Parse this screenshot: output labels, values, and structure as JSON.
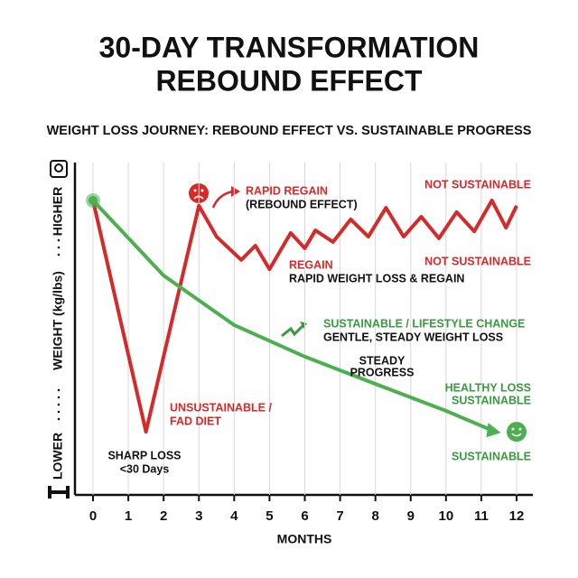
{
  "chart_data": {
    "type": "line",
    "title": [
      "30-DAY TRANSFORMATION",
      "REBOUND EFFECT"
    ],
    "subtitle": "WEIGHT LOSS JOURNEY: REBOUND EFFECT VS. SUSTAINABLE PROGRESS",
    "x_label": "MONTHS",
    "y_label": [
      "LOWER",
      "WEIGHT (kg/lbs)",
      "HIGHER"
    ],
    "xlim": [
      0,
      12
    ],
    "xticks": [
      0,
      1,
      2,
      3,
      4,
      5,
      6,
      7,
      8,
      9,
      10,
      11,
      12
    ],
    "ylim": [
      0,
      100
    ],
    "grid": true,
    "series": [
      {
        "name": "Rebound",
        "color": "#d42a2a",
        "x": [
          0,
          1.5,
          3,
          3.5,
          4.2,
          4.6,
          5,
          5.6,
          6,
          6.3,
          6.8,
          7.3,
          7.8,
          8.3,
          8.8,
          9.3,
          9.8,
          10.3,
          10.8,
          11.3,
          11.7,
          12
        ],
        "values": [
          88.6,
          19.0,
          87.0,
          77.7,
          70.7,
          75.0,
          67.9,
          78.8,
          74.2,
          79.6,
          76.1,
          82.9,
          77.7,
          86.4,
          77.7,
          83.7,
          77.2,
          85.1,
          79.3,
          88.6,
          80.4,
          87.0
        ]
      },
      {
        "name": "Sustainable",
        "color": "#4caf50",
        "x": [
          0,
          2,
          4,
          6,
          8,
          10,
          11.4
        ],
        "values": [
          88.6,
          66.0,
          51.1,
          41.6,
          33.4,
          25.3,
          19.0
        ]
      }
    ],
    "annotations": [
      {
        "text": "RAPID REGAIN",
        "color": "#d42a2a"
      },
      {
        "text": "(REBOUND EFFECT)",
        "color": "#111"
      },
      {
        "text": "NOT SUSTAINABLE",
        "color": "#d42a2a"
      },
      {
        "text": "REGAIN",
        "color": "#d42a2a"
      },
      {
        "text": "RAPID WEIGHT LOSS & REGAIN",
        "color": "#111"
      },
      {
        "text": "NOT SUSTAINABLE",
        "color": "#d42a2a"
      },
      {
        "text": "SUSTAINABLE / LIFESTYLE CHANGE",
        "color": "#3a9a3e"
      },
      {
        "text": "GENTLE, STEADY WEIGHT LOSS",
        "color": "#111"
      },
      {
        "text": "STEADY",
        "color": "#111"
      },
      {
        "text": "PROGRESS",
        "color": "#111"
      },
      {
        "text": "HEALTHY LOSS",
        "color": "#3a9a3e"
      },
      {
        "text": "SUSTAINABLE",
        "color": "#3a9a3e"
      },
      {
        "text": "UNSUSTAINABLE /",
        "color": "#d42a2a"
      },
      {
        "text": "FAD DIET",
        "color": "#d42a2a"
      },
      {
        "text": "SHARP LOSS",
        "color": "#111"
      },
      {
        "text": "<30 Days",
        "color": "#111"
      },
      {
        "text": "SUSTAINABLE",
        "color": "#3a9a3e"
      }
    ]
  }
}
